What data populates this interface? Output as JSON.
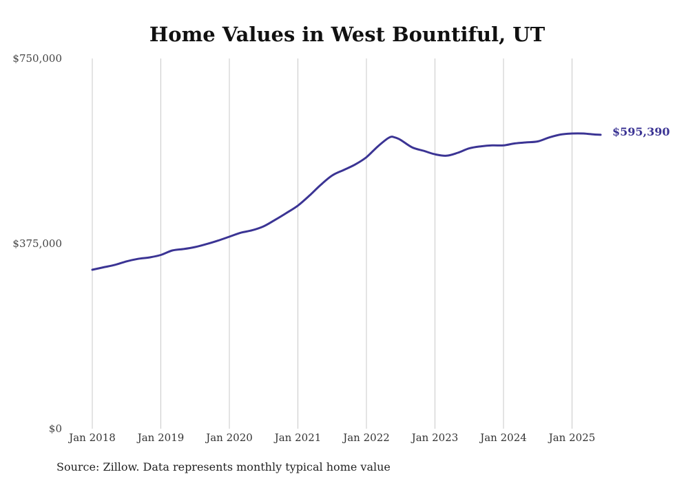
{
  "chart_data": {
    "type": "line",
    "title": "Home Values in West Bountiful, UT",
    "source": "Source: Zillow. Data represents monthly typical home value",
    "xlabel": "",
    "ylabel": "",
    "ylim": [
      0,
      750000
    ],
    "yticks": [
      {
        "value": 0,
        "label": "$0"
      },
      {
        "value": 375000,
        "label": "$375,000"
      },
      {
        "value": 750000,
        "label": "$750,000"
      }
    ],
    "xlim": [
      "2018-01",
      "2025-06"
    ],
    "xticks": [
      {
        "value": "2018-01",
        "label": "Jan 2018"
      },
      {
        "value": "2019-01",
        "label": "Jan 2019"
      },
      {
        "value": "2020-01",
        "label": "Jan 2020"
      },
      {
        "value": "2021-01",
        "label": "Jan 2021"
      },
      {
        "value": "2022-01",
        "label": "Jan 2022"
      },
      {
        "value": "2023-01",
        "label": "Jan 2023"
      },
      {
        "value": "2024-01",
        "label": "Jan 2024"
      },
      {
        "value": "2025-01",
        "label": "Jan 2025"
      }
    ],
    "grid": {
      "vertical": true,
      "horizontal": false
    },
    "colors": {
      "line": "#3b3494"
    },
    "end_label": "$595,390",
    "series": [
      {
        "x": [
          "2018-01",
          "2018-03",
          "2018-05",
          "2018-07",
          "2018-09",
          "2018-11",
          "2019-01",
          "2019-03",
          "2019-05",
          "2019-07",
          "2019-09",
          "2019-11",
          "2020-01",
          "2020-03",
          "2020-05",
          "2020-07",
          "2020-09",
          "2020-11",
          "2021-01",
          "2021-03",
          "2021-05",
          "2021-07",
          "2021-09",
          "2021-11",
          "2022-01",
          "2022-03",
          "2022-05",
          "2022-06",
          "2022-07",
          "2022-09",
          "2022-11",
          "2023-01",
          "2023-03",
          "2023-05",
          "2023-07",
          "2023-09",
          "2023-11",
          "2024-01",
          "2024-03",
          "2024-05",
          "2024-07",
          "2024-09",
          "2024-11",
          "2025-01",
          "2025-03",
          "2025-05",
          "2025-06"
        ],
        "values": [
          322000,
          327000,
          332000,
          339000,
          344000,
          347000,
          352000,
          361000,
          364000,
          368000,
          374000,
          381000,
          389000,
          397000,
          402000,
          410000,
          423000,
          437000,
          452000,
          472000,
          494000,
          513000,
          524000,
          535000,
          550000,
          572000,
          590000,
          590000,
          585000,
          570000,
          563000,
          556000,
          553000,
          559000,
          568000,
          572000,
          574000,
          574000,
          578000,
          580000,
          582000,
          590000,
          596000,
          598000,
          598000,
          596000,
          595390
        ]
      }
    ]
  }
}
